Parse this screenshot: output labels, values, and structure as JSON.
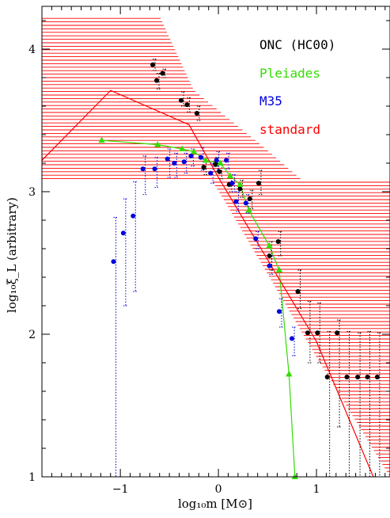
{
  "chart_data": {
    "type": "scatter",
    "title": "",
    "xlabel": "log₁₀m [M⊙]",
    "ylabel": "log₁₀ξ_L (arbitrary)",
    "xlim": [
      -1.8,
      1.75
    ],
    "ylim": [
      1,
      4.3
    ],
    "x_ticks": [
      -1,
      0,
      1
    ],
    "x_tick_labels": [
      "−1",
      "0",
      "1"
    ],
    "y_ticks": [
      1,
      2,
      3,
      4
    ],
    "y_tick_labels": [
      "1",
      "2",
      "3",
      "4"
    ],
    "legend_position": "top-right",
    "grid": false,
    "series": [
      {
        "name": "ONC (HC00)",
        "color": "#000000",
        "marker": "circle",
        "points": [
          {
            "x": -0.67,
            "y": 3.89,
            "lo": 3.85,
            "hi": 3.93
          },
          {
            "x": -0.63,
            "y": 3.78,
            "lo": 3.72,
            "hi": 3.83
          },
          {
            "x": -0.57,
            "y": 3.83,
            "lo": 3.8,
            "hi": 3.86
          },
          {
            "x": -0.38,
            "y": 3.64,
            "lo": 3.6,
            "hi": 3.7
          },
          {
            "x": -0.32,
            "y": 3.61,
            "lo": 3.56,
            "hi": 3.66
          },
          {
            "x": -0.22,
            "y": 3.55,
            "lo": 3.5,
            "hi": 3.6
          },
          {
            "x": -0.15,
            "y": 3.17,
            "lo": 3.12,
            "hi": 3.22
          },
          {
            "x": -0.03,
            "y": 3.19,
            "lo": 3.14,
            "hi": 3.24
          },
          {
            "x": 0.01,
            "y": 3.14,
            "lo": 3.09,
            "hi": 3.19
          },
          {
            "x": 0.11,
            "y": 3.05,
            "lo": 3.0,
            "hi": 3.1
          },
          {
            "x": 0.22,
            "y": 3.02,
            "lo": 2.96,
            "hi": 3.08
          },
          {
            "x": 0.32,
            "y": 2.95,
            "lo": 2.88,
            "hi": 3.01
          },
          {
            "x": 0.41,
            "y": 3.06,
            "lo": 2.98,
            "hi": 3.15
          },
          {
            "x": 0.52,
            "y": 2.55,
            "lo": 2.45,
            "hi": 2.65
          },
          {
            "x": 0.61,
            "y": 2.65,
            "lo": 2.55,
            "hi": 2.72
          },
          {
            "x": 0.81,
            "y": 2.3,
            "lo": 2.18,
            "hi": 2.45
          },
          {
            "x": 0.91,
            "y": 2.01,
            "lo": 1.8,
            "hi": 2.23
          },
          {
            "x": 1.01,
            "y": 2.01,
            "lo": 1.8,
            "hi": 2.22
          },
          {
            "x": 1.11,
            "y": 1.7,
            "lo": 1.0,
            "hi": 2.02
          },
          {
            "x": 1.21,
            "y": 2.01,
            "lo": 1.35,
            "hi": 2.1
          },
          {
            "x": 1.31,
            "y": 1.7,
            "lo": 1.0,
            "hi": 2.02
          },
          {
            "x": 1.42,
            "y": 1.7,
            "lo": 1.0,
            "hi": 2.01
          },
          {
            "x": 1.52,
            "y": 1.7,
            "lo": 1.0,
            "hi": 2.02
          },
          {
            "x": 1.62,
            "y": 1.7,
            "lo": 1.0,
            "hi": 2.01
          }
        ]
      },
      {
        "name": "Pleiades",
        "color": "#33dd00",
        "marker": "triangle",
        "line": true,
        "points": [
          {
            "x": -1.19,
            "y": 3.36
          },
          {
            "x": -0.62,
            "y": 3.33
          },
          {
            "x": -0.37,
            "y": 3.3
          },
          {
            "x": -0.25,
            "y": 3.28
          },
          {
            "x": -0.13,
            "y": 3.22
          },
          {
            "x": 0.02,
            "y": 3.2
          },
          {
            "x": 0.12,
            "y": 3.11
          },
          {
            "x": 0.22,
            "y": 3.05
          },
          {
            "x": 0.31,
            "y": 2.87
          },
          {
            "x": 0.52,
            "y": 2.62
          },
          {
            "x": 0.62,
            "y": 2.45
          },
          {
            "x": 0.72,
            "y": 1.72
          },
          {
            "x": 0.78,
            "y": 1.0
          }
        ]
      },
      {
        "name": "M35",
        "color": "#0000dd",
        "marker": "circle",
        "points": [
          {
            "x": -1.07,
            "y": 2.51,
            "lo": 1.0,
            "hi": 2.82
          },
          {
            "x": -0.97,
            "y": 2.71,
            "lo": 2.2,
            "hi": 2.95
          },
          {
            "x": -0.87,
            "y": 2.83,
            "lo": 2.3,
            "hi": 3.07
          },
          {
            "x": -0.77,
            "y": 3.16,
            "lo": 2.98,
            "hi": 3.25
          },
          {
            "x": -0.65,
            "y": 3.16,
            "lo": 3.03,
            "hi": 3.24
          },
          {
            "x": -0.52,
            "y": 3.23,
            "lo": 3.1,
            "hi": 3.3
          },
          {
            "x": -0.45,
            "y": 3.2,
            "lo": 3.1,
            "hi": 3.27
          },
          {
            "x": -0.35,
            "y": 3.21,
            "lo": 3.13,
            "hi": 3.27
          },
          {
            "x": -0.28,
            "y": 3.25,
            "lo": 3.18,
            "hi": 3.3
          },
          {
            "x": -0.18,
            "y": 3.24,
            "lo": 3.15,
            "hi": 3.31
          },
          {
            "x": -0.08,
            "y": 3.13,
            "lo": 3.06,
            "hi": 3.2
          },
          {
            "x": -0.02,
            "y": 3.22,
            "lo": 3.15,
            "hi": 3.28
          },
          {
            "x": 0.08,
            "y": 3.22,
            "lo": 3.16,
            "hi": 3.27
          },
          {
            "x": 0.14,
            "y": 3.06,
            "lo": 3.0,
            "hi": 3.12
          },
          {
            "x": 0.18,
            "y": 2.93,
            "lo": 2.86,
            "hi": 3.0
          },
          {
            "x": 0.28,
            "y": 2.92,
            "lo": 2.85,
            "hi": 2.98
          },
          {
            "x": 0.38,
            "y": 2.67,
            "lo": 2.6,
            "hi": 2.72
          },
          {
            "x": 0.52,
            "y": 2.48,
            "lo": 2.42,
            "hi": 2.55
          },
          {
            "x": 0.62,
            "y": 2.16,
            "lo": 2.05,
            "hi": 2.25
          },
          {
            "x": 0.75,
            "y": 1.97,
            "lo": 1.85,
            "hi": 2.05
          }
        ]
      },
      {
        "name": "standard",
        "color": "#ff0000",
        "marker": "none",
        "line": true,
        "points": [
          {
            "x": -1.8,
            "y": 3.22
          },
          {
            "x": -1.1,
            "y": 3.71
          },
          {
            "x": -0.3,
            "y": 3.47
          },
          {
            "x": 0.0,
            "y": 3.1
          },
          {
            "x": 1.0,
            "y": 1.95
          },
          {
            "x": 1.58,
            "y": 1.0
          }
        ]
      }
    ],
    "band": {
      "color": "#ff0000",
      "upper": [
        [
          -1.8,
          4.23
        ],
        [
          -0.6,
          4.23
        ],
        [
          -0.25,
          3.71
        ],
        [
          0.5,
          3.29
        ],
        [
          1.75,
          2.55
        ]
      ],
      "lower": [
        [
          -1.8,
          3.07
        ],
        [
          -1.1,
          3.55
        ],
        [
          -0.3,
          3.33
        ],
        [
          0.05,
          2.95
        ],
        [
          1.0,
          1.84
        ],
        [
          1.75,
          1.0
        ]
      ]
    }
  }
}
